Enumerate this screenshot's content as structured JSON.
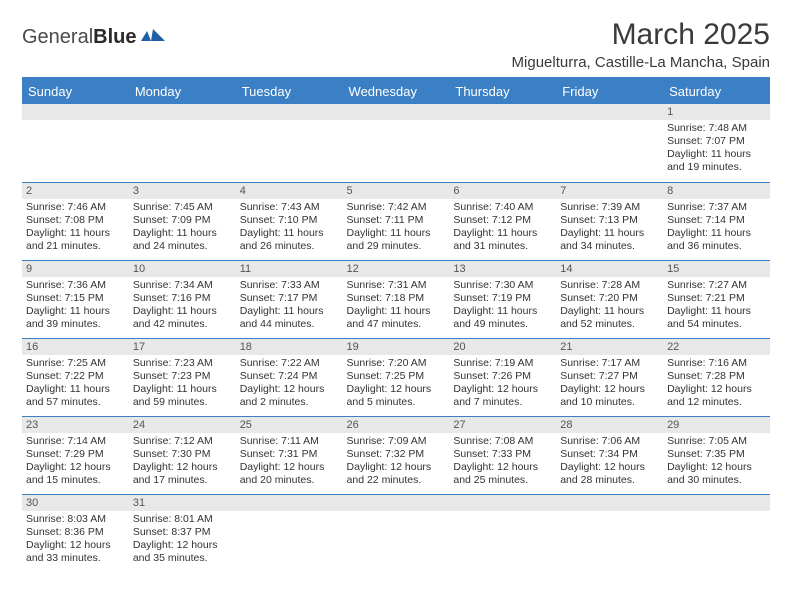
{
  "brand": {
    "name_a": "General",
    "name_b": "Blue",
    "icon_color": "#1f5fa8"
  },
  "title": "March 2025",
  "location": "Miguelturra, Castille-La Mancha, Spain",
  "header_bg": "#3b7fc4",
  "day_headers": [
    "Sunday",
    "Monday",
    "Tuesday",
    "Wednesday",
    "Thursday",
    "Friday",
    "Saturday"
  ],
  "weeks": [
    [
      null,
      null,
      null,
      null,
      null,
      null,
      {
        "n": "1",
        "sunrise": "Sunrise: 7:48 AM",
        "sunset": "Sunset: 7:07 PM",
        "day": "Daylight: 11 hours and 19 minutes."
      }
    ],
    [
      {
        "n": "2",
        "sunrise": "Sunrise: 7:46 AM",
        "sunset": "Sunset: 7:08 PM",
        "day": "Daylight: 11 hours and 21 minutes."
      },
      {
        "n": "3",
        "sunrise": "Sunrise: 7:45 AM",
        "sunset": "Sunset: 7:09 PM",
        "day": "Daylight: 11 hours and 24 minutes."
      },
      {
        "n": "4",
        "sunrise": "Sunrise: 7:43 AM",
        "sunset": "Sunset: 7:10 PM",
        "day": "Daylight: 11 hours and 26 minutes."
      },
      {
        "n": "5",
        "sunrise": "Sunrise: 7:42 AM",
        "sunset": "Sunset: 7:11 PM",
        "day": "Daylight: 11 hours and 29 minutes."
      },
      {
        "n": "6",
        "sunrise": "Sunrise: 7:40 AM",
        "sunset": "Sunset: 7:12 PM",
        "day": "Daylight: 11 hours and 31 minutes."
      },
      {
        "n": "7",
        "sunrise": "Sunrise: 7:39 AM",
        "sunset": "Sunset: 7:13 PM",
        "day": "Daylight: 11 hours and 34 minutes."
      },
      {
        "n": "8",
        "sunrise": "Sunrise: 7:37 AM",
        "sunset": "Sunset: 7:14 PM",
        "day": "Daylight: 11 hours and 36 minutes."
      }
    ],
    [
      {
        "n": "9",
        "sunrise": "Sunrise: 7:36 AM",
        "sunset": "Sunset: 7:15 PM",
        "day": "Daylight: 11 hours and 39 minutes."
      },
      {
        "n": "10",
        "sunrise": "Sunrise: 7:34 AM",
        "sunset": "Sunset: 7:16 PM",
        "day": "Daylight: 11 hours and 42 minutes."
      },
      {
        "n": "11",
        "sunrise": "Sunrise: 7:33 AM",
        "sunset": "Sunset: 7:17 PM",
        "day": "Daylight: 11 hours and 44 minutes."
      },
      {
        "n": "12",
        "sunrise": "Sunrise: 7:31 AM",
        "sunset": "Sunset: 7:18 PM",
        "day": "Daylight: 11 hours and 47 minutes."
      },
      {
        "n": "13",
        "sunrise": "Sunrise: 7:30 AM",
        "sunset": "Sunset: 7:19 PM",
        "day": "Daylight: 11 hours and 49 minutes."
      },
      {
        "n": "14",
        "sunrise": "Sunrise: 7:28 AM",
        "sunset": "Sunset: 7:20 PM",
        "day": "Daylight: 11 hours and 52 minutes."
      },
      {
        "n": "15",
        "sunrise": "Sunrise: 7:27 AM",
        "sunset": "Sunset: 7:21 PM",
        "day": "Daylight: 11 hours and 54 minutes."
      }
    ],
    [
      {
        "n": "16",
        "sunrise": "Sunrise: 7:25 AM",
        "sunset": "Sunset: 7:22 PM",
        "day": "Daylight: 11 hours and 57 minutes."
      },
      {
        "n": "17",
        "sunrise": "Sunrise: 7:23 AM",
        "sunset": "Sunset: 7:23 PM",
        "day": "Daylight: 11 hours and 59 minutes."
      },
      {
        "n": "18",
        "sunrise": "Sunrise: 7:22 AM",
        "sunset": "Sunset: 7:24 PM",
        "day": "Daylight: 12 hours and 2 minutes."
      },
      {
        "n": "19",
        "sunrise": "Sunrise: 7:20 AM",
        "sunset": "Sunset: 7:25 PM",
        "day": "Daylight: 12 hours and 5 minutes."
      },
      {
        "n": "20",
        "sunrise": "Sunrise: 7:19 AM",
        "sunset": "Sunset: 7:26 PM",
        "day": "Daylight: 12 hours and 7 minutes."
      },
      {
        "n": "21",
        "sunrise": "Sunrise: 7:17 AM",
        "sunset": "Sunset: 7:27 PM",
        "day": "Daylight: 12 hours and 10 minutes."
      },
      {
        "n": "22",
        "sunrise": "Sunrise: 7:16 AM",
        "sunset": "Sunset: 7:28 PM",
        "day": "Daylight: 12 hours and 12 minutes."
      }
    ],
    [
      {
        "n": "23",
        "sunrise": "Sunrise: 7:14 AM",
        "sunset": "Sunset: 7:29 PM",
        "day": "Daylight: 12 hours and 15 minutes."
      },
      {
        "n": "24",
        "sunrise": "Sunrise: 7:12 AM",
        "sunset": "Sunset: 7:30 PM",
        "day": "Daylight: 12 hours and 17 minutes."
      },
      {
        "n": "25",
        "sunrise": "Sunrise: 7:11 AM",
        "sunset": "Sunset: 7:31 PM",
        "day": "Daylight: 12 hours and 20 minutes."
      },
      {
        "n": "26",
        "sunrise": "Sunrise: 7:09 AM",
        "sunset": "Sunset: 7:32 PM",
        "day": "Daylight: 12 hours and 22 minutes."
      },
      {
        "n": "27",
        "sunrise": "Sunrise: 7:08 AM",
        "sunset": "Sunset: 7:33 PM",
        "day": "Daylight: 12 hours and 25 minutes."
      },
      {
        "n": "28",
        "sunrise": "Sunrise: 7:06 AM",
        "sunset": "Sunset: 7:34 PM",
        "day": "Daylight: 12 hours and 28 minutes."
      },
      {
        "n": "29",
        "sunrise": "Sunrise: 7:05 AM",
        "sunset": "Sunset: 7:35 PM",
        "day": "Daylight: 12 hours and 30 minutes."
      }
    ],
    [
      {
        "n": "30",
        "sunrise": "Sunrise: 8:03 AM",
        "sunset": "Sunset: 8:36 PM",
        "day": "Daylight: 12 hours and 33 minutes."
      },
      {
        "n": "31",
        "sunrise": "Sunrise: 8:01 AM",
        "sunset": "Sunset: 8:37 PM",
        "day": "Daylight: 12 hours and 35 minutes."
      },
      null,
      null,
      null,
      null,
      null
    ]
  ]
}
